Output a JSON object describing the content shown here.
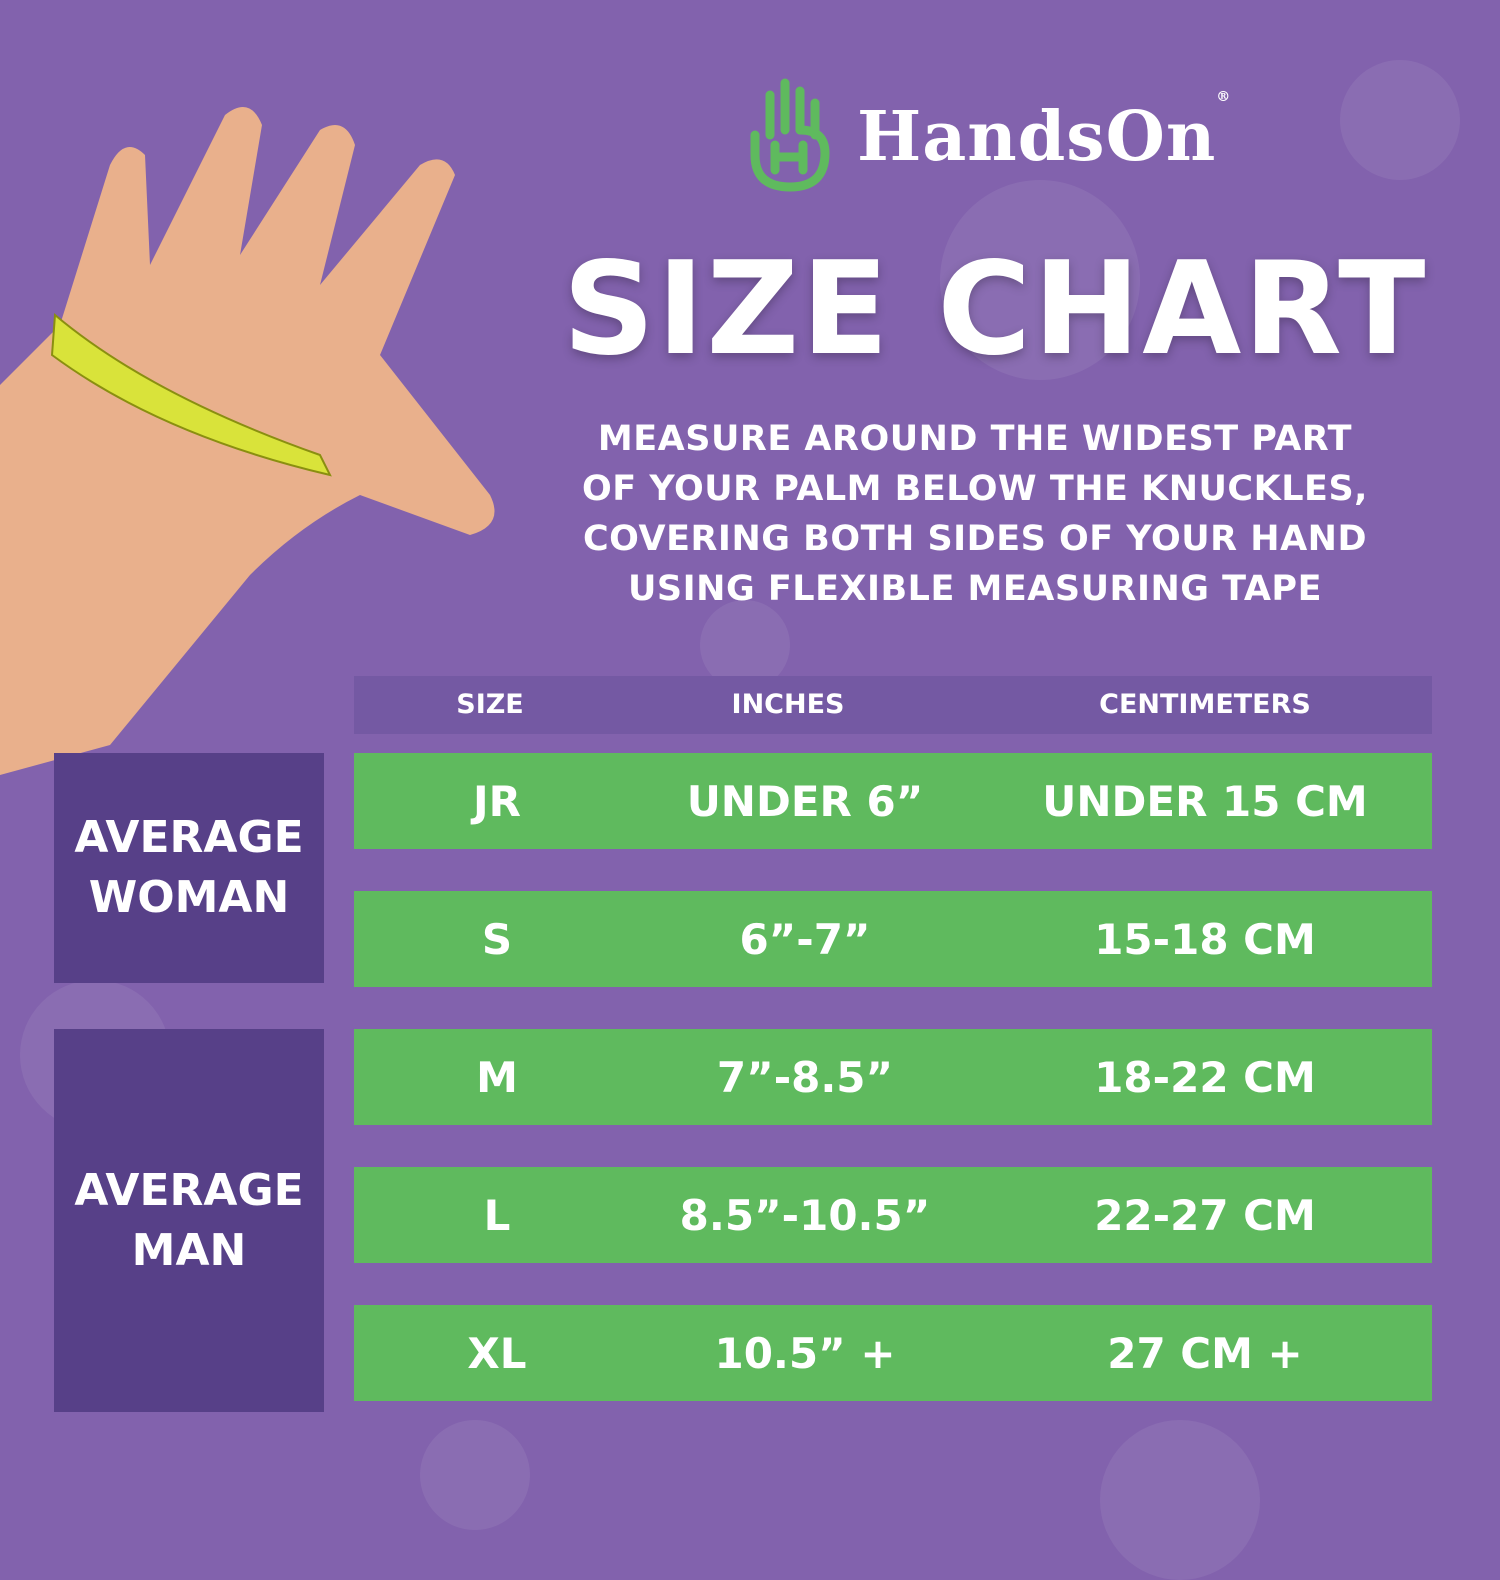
{
  "brand": {
    "name": "HandsOn",
    "registered": "®",
    "logo_icon": "green-hand-h-logo"
  },
  "title": "SIZE CHART",
  "instructions": [
    "MEASURE AROUND THE WIDEST PART",
    "OF YOUR PALM BELOW THE KNUCKLES,",
    "COVERING BOTH SIDES OF YOUR HAND",
    "USING FLEXIBLE MEASURING TAPE"
  ],
  "table": {
    "headers": [
      "SIZE",
      "INCHES",
      "CENTIMETERS"
    ],
    "groups": [
      {
        "line1": "AVERAGE",
        "line2": "WOMAN"
      },
      {
        "line1": "AVERAGE",
        "line2": "MAN"
      }
    ],
    "rows": [
      {
        "size": "JR",
        "inches": "UNDER 6”",
        "cm": "UNDER 15 CM"
      },
      {
        "size": "S",
        "inches": "6”-7”",
        "cm": "15-18 CM"
      },
      {
        "size": "M",
        "inches": "7”-8.5”",
        "cm": "18-22 CM"
      },
      {
        "size": "L",
        "inches": "8.5”-10.5”",
        "cm": "22-27 CM"
      },
      {
        "size": "XL",
        "inches": "10.5” +",
        "cm": "27 CM +"
      }
    ]
  },
  "colors": {
    "background": "#8262ad",
    "header": "#7459a3",
    "group": "#574088",
    "row": "#5fba5e",
    "logo": "#5fba5e"
  }
}
